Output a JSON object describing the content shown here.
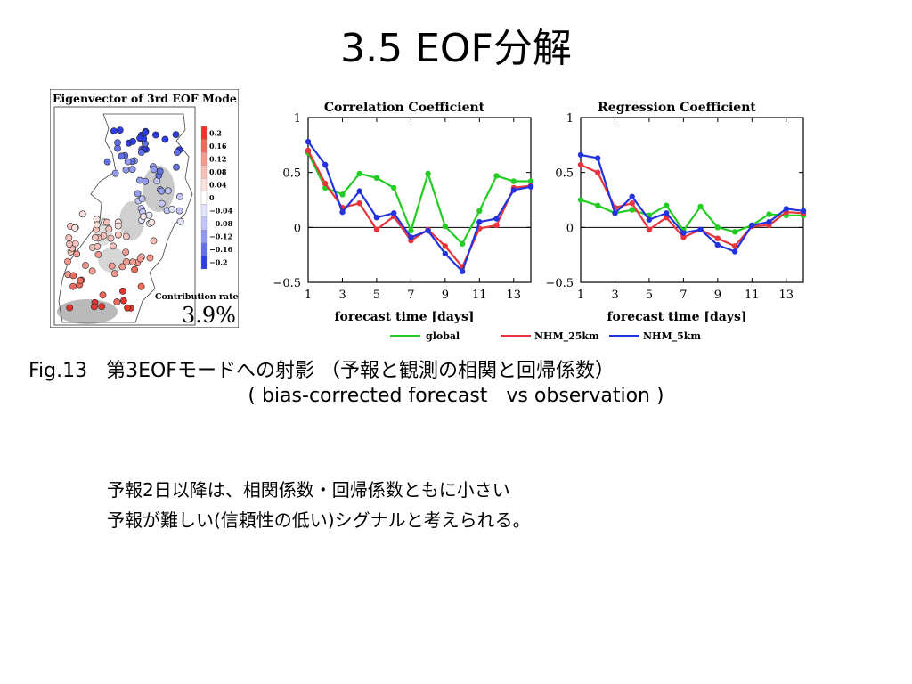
{
  "slide": {
    "title": "3.5 EOF分解",
    "caption_line1": "Fig.13   第3EOFモードへの射影 （予報と観測の相関と回帰係数）",
    "caption_line2": "( bias-corrected forecast   vs observation )",
    "note_line1": "予報2日以降は、相関係数・回帰係数ともに小さい",
    "note_line2": "予報が難しい(信頼性の低い)シグナルと考えられる。"
  },
  "map": {
    "title": "Eigenvector of 3rd EOF Mode",
    "colorbar_ticks": [
      "0.2",
      "0.16",
      "0.12",
      "0.08",
      "0.04",
      "0",
      "−0.04",
      "−0.08",
      "−0.12",
      "−0.16",
      "−0.2"
    ],
    "colorbar_colors": [
      "#e8342c",
      "#ee6a5c",
      "#f29a90",
      "#f6c0ba",
      "#fbe2df",
      "#ffffff",
      "#e2e4fb",
      "#c0c4f6",
      "#939bf0",
      "#6270e8",
      "#2f3ee0"
    ],
    "contribution_label": "Contribution rate",
    "contribution_value": "3.9%"
  },
  "chart_data": [
    {
      "type": "line",
      "title": "Correlation Coefficient",
      "xlabel": "forecast time [days]",
      "ylabel": "",
      "x": [
        1,
        2,
        3,
        4,
        5,
        6,
        7,
        8,
        9,
        10,
        11,
        12,
        13,
        14
      ],
      "xticks": [
        1,
        3,
        5,
        7,
        9,
        11,
        13
      ],
      "xlim": [
        1,
        14
      ],
      "ylim": [
        -0.5,
        1
      ],
      "yticks": [
        -0.5,
        0,
        0.5,
        1
      ],
      "ytick_labels": [
        "−0.5",
        "0",
        "0.5",
        "1"
      ],
      "zero_line": true,
      "series": [
        {
          "name": "global",
          "color": "#22cc22",
          "values": [
            0.68,
            0.36,
            0.3,
            0.49,
            0.45,
            0.36,
            -0.03,
            0.49,
            0.01,
            -0.15,
            0.15,
            0.47,
            0.42,
            0.42
          ]
        },
        {
          "name": "NHM_25km",
          "color": "#e8343c",
          "values": [
            0.7,
            0.4,
            0.18,
            0.22,
            -0.02,
            0.1,
            -0.12,
            -0.02,
            -0.17,
            -0.36,
            -0.01,
            0.02,
            0.36,
            0.38
          ]
        },
        {
          "name": "NHM_5km",
          "color": "#2233dd",
          "values": [
            0.78,
            0.57,
            0.14,
            0.33,
            0.09,
            0.13,
            -0.09,
            -0.03,
            -0.24,
            -0.4,
            0.05,
            0.08,
            0.34,
            0.37
          ]
        }
      ]
    },
    {
      "type": "line",
      "title": "Regression Coefficient",
      "xlabel": "forecast time [days]",
      "ylabel": "",
      "x": [
        1,
        2,
        3,
        4,
        5,
        6,
        7,
        8,
        9,
        10,
        11,
        12,
        13,
        14
      ],
      "xticks": [
        1,
        3,
        5,
        7,
        9,
        11,
        13
      ],
      "xlim": [
        1,
        14
      ],
      "ylim": [
        -0.5,
        1
      ],
      "yticks": [
        -0.5,
        0,
        0.5,
        1
      ],
      "ytick_labels": [
        "−0.5",
        "0",
        "0.5",
        "1"
      ],
      "zero_line": true,
      "series": [
        {
          "name": "global",
          "color": "#22cc22",
          "values": [
            0.25,
            0.2,
            0.13,
            0.16,
            0.11,
            0.2,
            -0.03,
            0.19,
            0.0,
            -0.04,
            0.02,
            0.12,
            0.11,
            0.11
          ]
        },
        {
          "name": "NHM_25km",
          "color": "#e8343c",
          "values": [
            0.57,
            0.5,
            0.18,
            0.22,
            -0.02,
            0.09,
            -0.09,
            -0.02,
            -0.1,
            -0.17,
            0.01,
            0.02,
            0.14,
            0.13
          ]
        },
        {
          "name": "NHM_5km",
          "color": "#2233dd",
          "values": [
            0.66,
            0.63,
            0.13,
            0.28,
            0.07,
            0.13,
            -0.05,
            -0.02,
            -0.16,
            -0.22,
            0.02,
            0.05,
            0.17,
            0.15
          ]
        }
      ]
    }
  ],
  "legend": [
    {
      "name": "global",
      "color": "#22cc22"
    },
    {
      "name": "NHM_25km",
      "color": "#e8343c"
    },
    {
      "name": "NHM_5km",
      "color": "#2233dd"
    }
  ]
}
